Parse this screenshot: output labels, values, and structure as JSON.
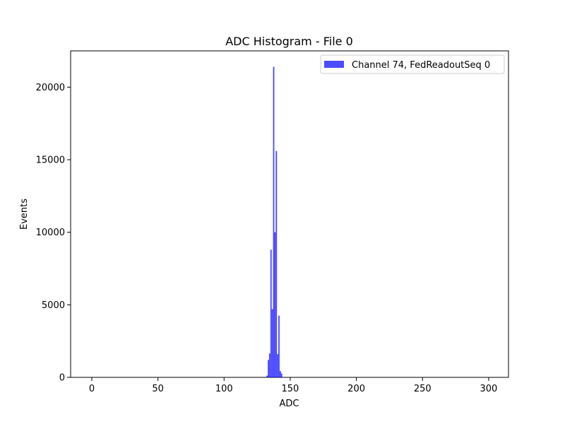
{
  "chart_data": {
    "type": "bar",
    "title": "ADC Histogram - File 0",
    "xlabel": "ADC",
    "ylabel": "Events",
    "xlim": [
      -16,
      315
    ],
    "ylim": [
      0,
      22500
    ],
    "xticks": [
      0,
      50,
      100,
      150,
      200,
      250,
      300
    ],
    "yticks": [
      0,
      5000,
      10000,
      15000,
      20000
    ],
    "legend": {
      "position": "top-right"
    },
    "series": [
      {
        "name": "Channel 74, FedReadoutSeq 0",
        "color": "#0000ff",
        "alpha": 0.7,
        "bin_width": 1,
        "x": [
          131,
          132,
          133,
          134,
          135,
          136,
          137,
          138,
          139,
          140,
          141,
          142,
          143
        ],
        "values": [
          30,
          120,
          1200,
          1650,
          8800,
          4700,
          21400,
          10000,
          15600,
          1600,
          4250,
          430,
          270
        ]
      }
    ],
    "grid": false
  }
}
